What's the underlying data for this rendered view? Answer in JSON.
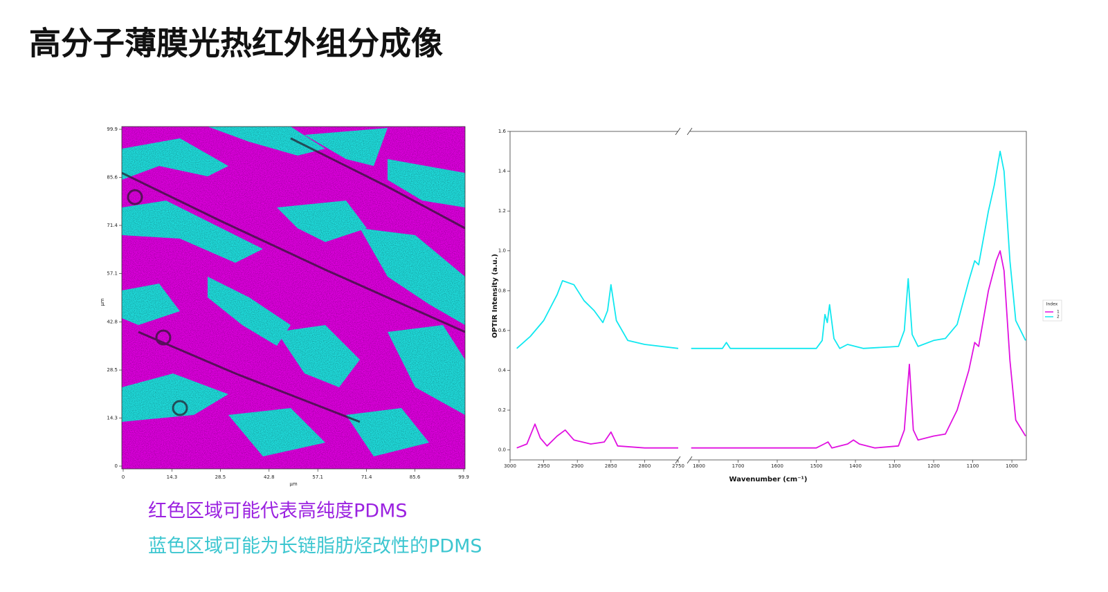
{
  "title": "高分子薄膜光热红外组分成像",
  "chart_data": [
    {
      "type": "image",
      "xlabel": "µm",
      "ylabel": "µm",
      "xlim": [
        0,
        99.9
      ],
      "ylim": [
        0,
        99.9
      ],
      "xticks": [
        0,
        14.3,
        28.5,
        42.8,
        57.1,
        71.4,
        85.6,
        99.9
      ],
      "yticks": [
        0,
        14.3,
        28.5,
        42.8,
        57.1,
        71.4,
        85.6,
        99.9
      ]
    },
    {
      "type": "line",
      "ylabel": "OPTIR Intensity (a.u.)",
      "xlabel": "Wavenumber (cm⁻¹)",
      "xlims": [
        [
          3000,
          2750
        ],
        [
          1823,
          963
        ]
      ],
      "xticks": [
        [
          3000,
          2950,
          2900,
          2850,
          2800,
          2750
        ],
        [
          1800,
          1700,
          1600,
          1500,
          1400,
          1300,
          1200,
          1100,
          1000
        ]
      ],
      "ylim": [
        -0.05,
        1.6
      ],
      "yticks": [
        {
          "value": 0,
          "label": "0.0"
        },
        0.2,
        0.4,
        0.6,
        0.8,
        {
          "value": 1,
          "label": "1.0"
        },
        1.2,
        1.4,
        1.6
      ],
      "legend_title": "Index",
      "legend": "right",
      "series": [
        {
          "name": "1",
          "color": "#e010e0",
          "x": [
            2990,
            2975,
            2963,
            2955,
            2945,
            2930,
            2918,
            2905,
            2880,
            2860,
            2850,
            2840,
            2800,
            2750,
            1820,
            1700,
            1500,
            1480,
            1470,
            1460,
            1420,
            1405,
            1390,
            1350,
            1290,
            1275,
            1262,
            1252,
            1240,
            1200,
            1170,
            1140,
            1110,
            1095,
            1085,
            1060,
            1040,
            1030,
            1020,
            1005,
            990,
            965
          ],
          "values": [
            0.01,
            0.03,
            0.13,
            0.06,
            0.02,
            0.07,
            0.1,
            0.05,
            0.03,
            0.04,
            0.09,
            0.02,
            0.01,
            0.01,
            0.01,
            0.01,
            0.01,
            0.03,
            0.04,
            0.01,
            0.03,
            0.05,
            0.03,
            0.01,
            0.02,
            0.1,
            0.43,
            0.1,
            0.05,
            0.07,
            0.08,
            0.2,
            0.4,
            0.54,
            0.52,
            0.8,
            0.95,
            1.0,
            0.9,
            0.45,
            0.15,
            0.07
          ]
        },
        {
          "name": "2",
          "color": "#10e8f0",
          "x": [
            2990,
            2970,
            2950,
            2930,
            2922,
            2905,
            2890,
            2875,
            2862,
            2855,
            2850,
            2842,
            2825,
            2800,
            2750,
            1820,
            1740,
            1730,
            1720,
            1500,
            1485,
            1478,
            1472,
            1466,
            1455,
            1440,
            1420,
            1380,
            1290,
            1275,
            1265,
            1255,
            1240,
            1200,
            1170,
            1140,
            1110,
            1095,
            1085,
            1060,
            1045,
            1030,
            1020,
            1005,
            990,
            965
          ],
          "values": [
            0.51,
            0.57,
            0.65,
            0.78,
            0.85,
            0.83,
            0.75,
            0.7,
            0.64,
            0.7,
            0.83,
            0.65,
            0.55,
            0.53,
            0.51,
            0.51,
            0.51,
            0.54,
            0.51,
            0.51,
            0.55,
            0.68,
            0.64,
            0.73,
            0.56,
            0.51,
            0.53,
            0.51,
            0.52,
            0.6,
            0.86,
            0.58,
            0.52,
            0.55,
            0.56,
            0.63,
            0.85,
            0.95,
            0.93,
            1.2,
            1.33,
            1.5,
            1.4,
            0.95,
            0.65,
            0.55
          ]
        }
      ]
    }
  ],
  "captions": [
    "红色区域可能代表高纯度PDMS",
    "蓝色区域可能为长链脂肪烃改性的PDMS"
  ]
}
